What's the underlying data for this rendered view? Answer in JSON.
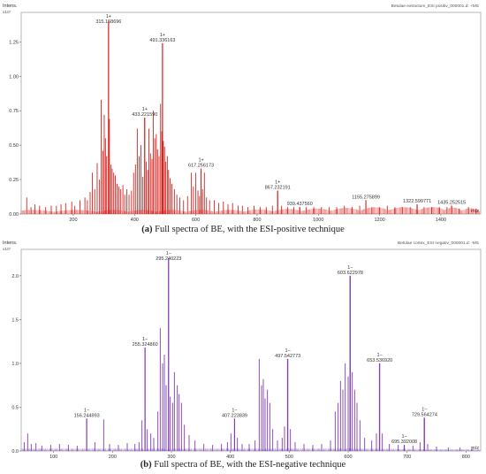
{
  "chart_data": [
    {
      "type": "line",
      "id": "a",
      "color": "#d8231f",
      "file_label": "Betulae extractum_ESI positiv_000001.d: +MS",
      "ylabel": "Intens.",
      "yexp": "x10⁷",
      "xlabel": "m/z",
      "xlim": [
        30,
        1530
      ],
      "ylim": [
        0,
        1.4
      ],
      "xticks": [
        200,
        400,
        600,
        800,
        1000,
        1200,
        1400
      ],
      "yticks": [
        0.0,
        0.25,
        0.5,
        0.75,
        1.0,
        1.25
      ],
      "ytick_labels": [
        "0.00",
        "0.25",
        "0.50",
        "0.75",
        "1.00",
        "1.25"
      ],
      "labeled_peaks": [
        {
          "x": 315.158696,
          "y": 1.4,
          "charge": "1+",
          "label": "315.158696"
        },
        {
          "x": 491.336163,
          "y": 1.24,
          "charge": "1+",
          "label": "491.336163"
        },
        {
          "x": 433.22159,
          "y": 0.7,
          "charge": "1+",
          "label": "433.221590"
        },
        {
          "x": 617.256173,
          "y": 0.33,
          "charge": "1+",
          "label": "617.256173"
        },
        {
          "x": 867.232191,
          "y": 0.17,
          "charge": "1+",
          "label": "867.232191"
        },
        {
          "x": 939.43756,
          "y": 0.05,
          "charge": "",
          "label": "939.437560"
        },
        {
          "x": 1155.275899,
          "y": 0.1,
          "charge": "",
          "label": "1155.275899"
        },
        {
          "x": 1322.599771,
          "y": 0.07,
          "charge": "",
          "label": "1322.599771"
        },
        {
          "x": 1435.252515,
          "y": 0.06,
          "charge": "",
          "label": "1435.252515"
        }
      ],
      "peaks": [
        [
          48,
          0.12
        ],
        [
          62,
          0.05
        ],
        [
          75,
          0.07
        ],
        [
          90,
          0.06
        ],
        [
          110,
          0.05
        ],
        [
          128,
          0.06
        ],
        [
          145,
          0.06
        ],
        [
          160,
          0.07
        ],
        [
          175,
          0.08
        ],
        [
          195,
          0.09
        ],
        [
          205,
          0.06
        ],
        [
          222,
          0.1
        ],
        [
          238,
          0.12
        ],
        [
          246,
          0.1
        ],
        [
          255,
          0.16
        ],
        [
          262,
          0.3
        ],
        [
          270,
          0.18
        ],
        [
          278,
          0.37
        ],
        [
          285,
          0.25
        ],
        [
          291,
          0.83
        ],
        [
          297,
          0.46
        ],
        [
          301,
          0.72
        ],
        [
          305,
          0.55
        ],
        [
          309,
          0.42
        ],
        [
          315,
          1.4
        ],
        [
          318,
          0.69
        ],
        [
          323,
          0.36
        ],
        [
          327,
          0.33
        ],
        [
          332,
          0.3
        ],
        [
          337,
          0.28
        ],
        [
          343,
          0.22
        ],
        [
          349,
          0.2
        ],
        [
          355,
          0.18
        ],
        [
          362,
          0.21
        ],
        [
          368,
          0.14
        ],
        [
          375,
          0.18
        ],
        [
          382,
          0.14
        ],
        [
          390,
          0.17
        ],
        [
          397,
          0.3
        ],
        [
          403,
          0.36
        ],
        [
          409,
          0.62
        ],
        [
          415,
          0.42
        ],
        [
          421,
          0.5
        ],
        [
          427,
          0.27
        ],
        [
          433,
          0.7
        ],
        [
          438,
          0.38
        ],
        [
          443,
          0.32
        ],
        [
          447,
          0.62
        ],
        [
          452,
          0.44
        ],
        [
          457,
          0.4
        ],
        [
          461,
          0.75
        ],
        [
          466,
          0.55
        ],
        [
          471,
          0.58
        ],
        [
          475,
          0.47
        ],
        [
          480,
          0.42
        ],
        [
          485,
          0.8
        ],
        [
          489,
          0.6
        ],
        [
          491,
          1.24
        ],
        [
          494,
          0.53
        ],
        [
          498,
          0.49
        ],
        [
          502,
          0.38
        ],
        [
          507,
          0.42
        ],
        [
          511,
          0.32
        ],
        [
          516,
          0.26
        ],
        [
          522,
          0.22
        ],
        [
          530,
          0.18
        ],
        [
          538,
          0.14
        ],
        [
          548,
          0.12
        ],
        [
          560,
          0.1
        ],
        [
          573,
          0.13
        ],
        [
          585,
          0.3
        ],
        [
          592,
          0.2
        ],
        [
          600,
          0.3
        ],
        [
          607,
          0.17
        ],
        [
          612,
          0.13
        ],
        [
          617,
          0.33
        ],
        [
          622,
          0.18
        ],
        [
          628,
          0.3
        ],
        [
          635,
          0.12
        ],
        [
          645,
          0.1
        ],
        [
          660,
          0.1
        ],
        [
          675,
          0.08
        ],
        [
          690,
          0.09
        ],
        [
          705,
          0.07
        ],
        [
          720,
          0.08
        ],
        [
          738,
          0.06
        ],
        [
          752,
          0.06
        ],
        [
          770,
          0.05
        ],
        [
          790,
          0.06
        ],
        [
          810,
          0.05
        ],
        [
          830,
          0.05
        ],
        [
          850,
          0.06
        ],
        [
          867,
          0.17
        ],
        [
          880,
          0.06
        ],
        [
          900,
          0.05
        ],
        [
          920,
          0.05
        ],
        [
          939,
          0.05
        ],
        [
          960,
          0.05
        ],
        [
          985,
          0.05
        ],
        [
          1010,
          0.05
        ],
        [
          1035,
          0.05
        ],
        [
          1060,
          0.05
        ],
        [
          1085,
          0.06
        ],
        [
          1110,
          0.05
        ],
        [
          1135,
          0.06
        ],
        [
          1155,
          0.1
        ],
        [
          1175,
          0.05
        ],
        [
          1200,
          0.05
        ],
        [
          1225,
          0.06
        ],
        [
          1250,
          0.05
        ],
        [
          1275,
          0.05
        ],
        [
          1300,
          0.05
        ],
        [
          1322,
          0.07
        ],
        [
          1345,
          0.05
        ],
        [
          1370,
          0.05
        ],
        [
          1395,
          0.05
        ],
        [
          1420,
          0.05
        ],
        [
          1435,
          0.06
        ],
        [
          1460,
          0.04
        ],
        [
          1490,
          0.05
        ],
        [
          1515,
          0.04
        ]
      ],
      "baseline_envelope": [
        [
          30,
          0.03
        ],
        [
          300,
          0.03
        ],
        [
          700,
          0.03
        ],
        [
          1000,
          0.04
        ],
        [
          1200,
          0.05
        ],
        [
          1400,
          0.05
        ],
        [
          1530,
          0.04
        ]
      ],
      "caption_label": "(a)",
      "caption_text": "Full spectra of BE, with the ESI-positive technique"
    },
    {
      "type": "line",
      "id": "b",
      "color": "#7f3fb3",
      "file_label": "Betulae cortex_ESI negativ_000001.d: -MS",
      "ylabel": "Intens.",
      "yexp": "x10⁷",
      "xlabel": "m/z",
      "xlim": [
        45,
        825
      ],
      "ylim": [
        0,
        2.2
      ],
      "xticks": [
        100,
        200,
        300,
        400,
        500,
        600,
        700,
        800
      ],
      "yticks": [
        0.0,
        0.5,
        1.0,
        1.5,
        2.0
      ],
      "ytick_labels": [
        "0.0",
        "0.5",
        "1.0",
        "1.5",
        "2.0"
      ],
      "labeled_peaks": [
        {
          "x": 295.240223,
          "y": 2.2,
          "charge": "1−",
          "label": "295.240223"
        },
        {
          "x": 603.622978,
          "y": 2.0,
          "charge": "1−",
          "label": "603.622978"
        },
        {
          "x": 255.32486,
          "y": 1.18,
          "charge": "1−",
          "label": "255.324860"
        },
        {
          "x": 497.542773,
          "y": 1.05,
          "charge": "1−",
          "label": "497.542773"
        },
        {
          "x": 653.53692,
          "y": 1.0,
          "charge": "1−",
          "label": "653.536920"
        },
        {
          "x": 156.244993,
          "y": 0.37,
          "charge": "1−",
          "label": "156.244993"
        },
        {
          "x": 407.223839,
          "y": 0.37,
          "charge": "1−",
          "label": "407.223839"
        },
        {
          "x": 729.564274,
          "y": 0.38,
          "charge": "1−",
          "label": "729.564274"
        },
        {
          "x": 695.392008,
          "y": 0.07,
          "charge": "1−",
          "label": "695.392008"
        }
      ],
      "peaks": [
        [
          50,
          0.1
        ],
        [
          56,
          0.2
        ],
        [
          62,
          0.08
        ],
        [
          70,
          0.09
        ],
        [
          80,
          0.06
        ],
        [
          95,
          0.07
        ],
        [
          110,
          0.08
        ],
        [
          125,
          0.07
        ],
        [
          140,
          0.06
        ],
        [
          156,
          0.37
        ],
        [
          170,
          0.1
        ],
        [
          185,
          0.36
        ],
        [
          195,
          0.08
        ],
        [
          210,
          0.07
        ],
        [
          225,
          0.09
        ],
        [
          238,
          0.08
        ],
        [
          245,
          0.1
        ],
        [
          250,
          0.35
        ],
        [
          255,
          1.18
        ],
        [
          259,
          0.25
        ],
        [
          265,
          0.2
        ],
        [
          270,
          0.15
        ],
        [
          277,
          0.45
        ],
        [
          281,
          1.4
        ],
        [
          285,
          1.0
        ],
        [
          288,
          1.1
        ],
        [
          291,
          0.75
        ],
        [
          295,
          2.2
        ],
        [
          298,
          0.62
        ],
        [
          302,
          0.55
        ],
        [
          305,
          0.9
        ],
        [
          310,
          0.75
        ],
        [
          313,
          0.65
        ],
        [
          317,
          0.55
        ],
        [
          322,
          0.3
        ],
        [
          330,
          0.18
        ],
        [
          340,
          0.12
        ],
        [
          355,
          0.08
        ],
        [
          370,
          0.07
        ],
        [
          385,
          0.08
        ],
        [
          395,
          0.1
        ],
        [
          401,
          0.2
        ],
        [
          407,
          0.37
        ],
        [
          412,
          0.15
        ],
        [
          420,
          0.08
        ],
        [
          432,
          0.08
        ],
        [
          442,
          0.12
        ],
        [
          449,
          1.05
        ],
        [
          453,
          0.75
        ],
        [
          456,
          0.82
        ],
        [
          459,
          0.6
        ],
        [
          463,
          0.7
        ],
        [
          467,
          0.55
        ],
        [
          472,
          0.25
        ],
        [
          480,
          0.12
        ],
        [
          488,
          0.15
        ],
        [
          492,
          0.28
        ],
        [
          497,
          1.05
        ],
        [
          502,
          0.25
        ],
        [
          510,
          0.1
        ],
        [
          525,
          0.08
        ],
        [
          540,
          0.07
        ],
        [
          555,
          0.08
        ],
        [
          570,
          0.12
        ],
        [
          578,
          0.45
        ],
        [
          583,
          0.55
        ],
        [
          587,
          0.8
        ],
        [
          591,
          0.7
        ],
        [
          595,
          1.0
        ],
        [
          600,
          0.85
        ],
        [
          603,
          2.0
        ],
        [
          607,
          0.9
        ],
        [
          611,
          0.7
        ],
        [
          615,
          0.55
        ],
        [
          620,
          0.35
        ],
        [
          628,
          0.15
        ],
        [
          640,
          0.12
        ],
        [
          648,
          0.2
        ],
        [
          653,
          1.0
        ],
        [
          658,
          0.2
        ],
        [
          670,
          0.08
        ],
        [
          685,
          0.07
        ],
        [
          695,
          0.07
        ],
        [
          710,
          0.06
        ],
        [
          722,
          0.1
        ],
        [
          729,
          0.38
        ],
        [
          735,
          0.08
        ],
        [
          750,
          0.05
        ],
        [
          770,
          0.04
        ],
        [
          790,
          0.04
        ],
        [
          810,
          0.04
        ]
      ],
      "baseline_envelope": [
        [
          45,
          0.03
        ],
        [
          300,
          0.03
        ],
        [
          600,
          0.03
        ],
        [
          825,
          0.02
        ]
      ],
      "caption_label": "(b)",
      "caption_text": "Full spectra of BE, with the ESI-negative technique"
    }
  ]
}
